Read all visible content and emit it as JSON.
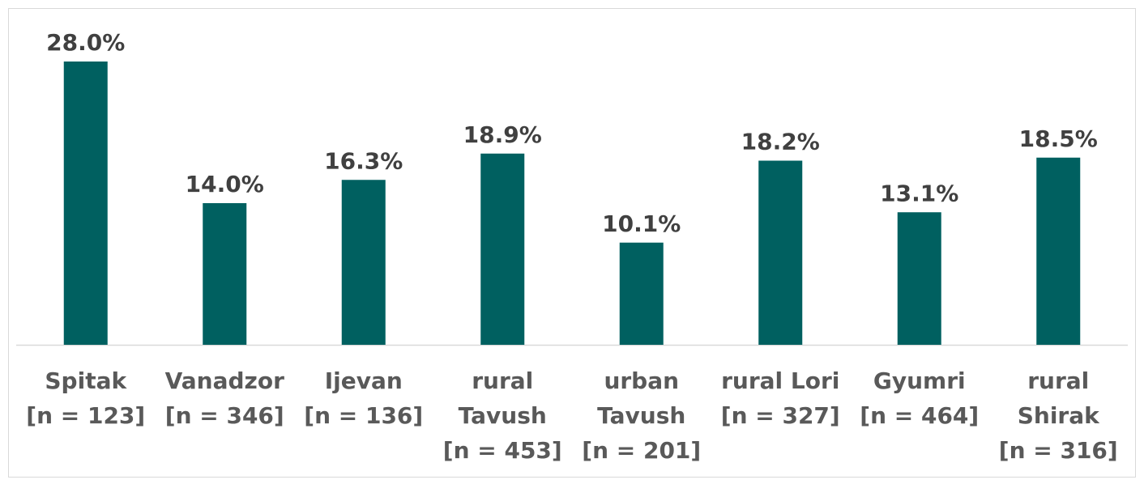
{
  "chart_data": {
    "type": "bar",
    "title": "",
    "xlabel": "",
    "ylabel": "",
    "ylim": [
      0,
      30
    ],
    "grid": false,
    "legend": "none",
    "colors": {
      "bar": "#006060",
      "axis": "#d9d9d9",
      "value_label": "#404040",
      "category_label": "#595959"
    },
    "categories": [
      {
        "lines": [
          "Spitak",
          "[n = 123]"
        ]
      },
      {
        "lines": [
          "Vanadzor",
          "[n = 346]"
        ]
      },
      {
        "lines": [
          "Ijevan",
          "[n = 136]"
        ]
      },
      {
        "lines": [
          "rural",
          "Tavush",
          "[n = 453]"
        ]
      },
      {
        "lines": [
          "urban",
          "Tavush",
          "[n = 201]"
        ]
      },
      {
        "lines": [
          "rural Lori",
          "[n = 327]"
        ]
      },
      {
        "lines": [
          "Gyumri",
          "[n = 464]"
        ]
      },
      {
        "lines": [
          "rural",
          "Shirak",
          "[n = 316]"
        ]
      }
    ],
    "values": [
      28.0,
      14.0,
      16.3,
      18.9,
      10.1,
      18.2,
      13.1,
      18.5
    ],
    "value_labels": [
      "28.0%",
      "14.0%",
      "16.3%",
      "18.9%",
      "10.1%",
      "18.2%",
      "13.1%",
      "18.5%"
    ]
  }
}
